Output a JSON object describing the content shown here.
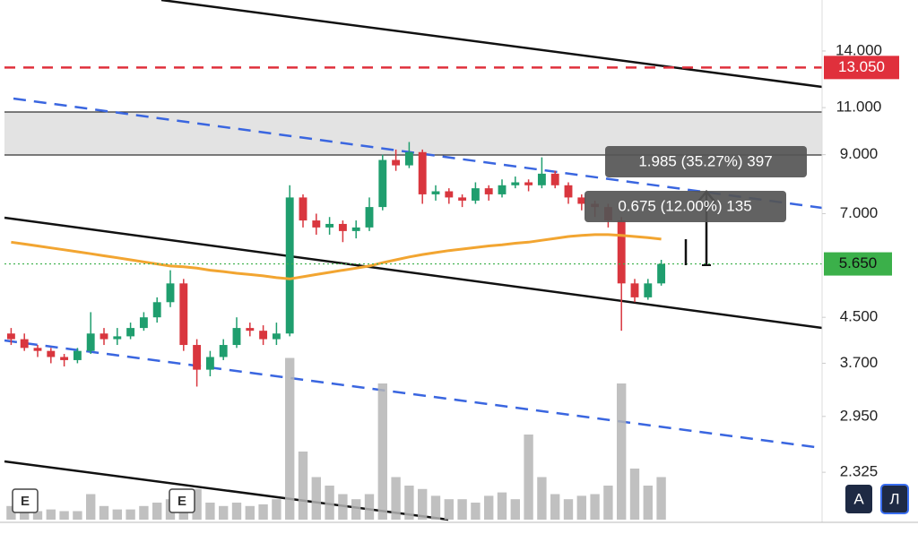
{
  "chart_data": {
    "type": "candlestick",
    "log_scale": true,
    "ylim": [
      1.9,
      17.4
    ],
    "yticks": [
      {
        "value": 14,
        "label": "14.000"
      },
      {
        "value": 11,
        "label": "11.000"
      },
      {
        "value": 9,
        "label": "9.000"
      },
      {
        "value": 7,
        "label": "7.000"
      },
      {
        "value": 4.5,
        "label": "4.500"
      },
      {
        "value": 3.7,
        "label": "3.700"
      },
      {
        "value": 2.95,
        "label": "2.950"
      },
      {
        "value": 2.325,
        "label": "2.325"
      }
    ],
    "up_color": "#1f9e6e",
    "down_color": "#d9363e",
    "volume_color": "#b5b5b5",
    "ma_color": "#f2a531",
    "open": [
      4.2,
      4.1,
      3.95,
      3.9,
      3.8,
      3.75,
      3.9,
      4.2,
      4.1,
      4.15,
      4.3,
      4.5,
      4.8,
      5.2,
      4.0,
      3.6,
      3.8,
      4.0,
      4.3,
      4.25,
      4.1,
      4.2,
      7.5,
      6.8,
      6.6,
      6.7,
      6.5,
      6.6,
      7.2,
      8.8,
      8.6,
      9.1,
      7.6,
      7.7,
      7.5,
      7.4,
      7.8,
      7.6,
      7.9,
      8.0,
      7.9,
      8.3,
      7.9,
      7.5,
      7.3,
      7.2,
      6.8,
      5.2,
      4.9,
      5.2
    ],
    "high": [
      4.3,
      4.2,
      4.0,
      3.95,
      3.85,
      3.95,
      4.6,
      4.3,
      4.3,
      4.4,
      4.6,
      4.9,
      5.5,
      5.3,
      4.1,
      3.9,
      4.1,
      4.5,
      4.4,
      4.35,
      4.4,
      7.9,
      7.6,
      7.0,
      6.9,
      6.8,
      6.8,
      7.5,
      9.0,
      9.2,
      9.5,
      9.2,
      7.9,
      7.8,
      7.6,
      8.0,
      7.9,
      8.1,
      8.2,
      8.1,
      8.9,
      8.4,
      8.0,
      7.6,
      7.4,
      7.3,
      6.9,
      5.3,
      5.3,
      5.75
    ],
    "low": [
      4.0,
      3.9,
      3.8,
      3.7,
      3.65,
      3.7,
      3.85,
      4.0,
      4.0,
      4.1,
      4.25,
      4.4,
      4.7,
      3.9,
      3.35,
      3.5,
      3.75,
      3.95,
      4.15,
      4.0,
      4.0,
      4.15,
      6.6,
      6.4,
      6.4,
      6.2,
      6.3,
      6.5,
      7.1,
      8.4,
      8.5,
      7.3,
      7.4,
      7.3,
      7.2,
      7.3,
      7.4,
      7.5,
      7.8,
      7.7,
      7.8,
      7.8,
      7.3,
      7.1,
      6.9,
      6.6,
      4.25,
      4.8,
      4.85,
      5.15
    ],
    "close": [
      4.1,
      3.95,
      3.9,
      3.8,
      3.75,
      3.9,
      4.2,
      4.1,
      4.15,
      4.3,
      4.5,
      4.8,
      5.2,
      4.0,
      3.6,
      3.8,
      4.0,
      4.3,
      4.25,
      4.1,
      4.2,
      7.5,
      6.8,
      6.6,
      6.7,
      6.5,
      6.6,
      7.2,
      8.8,
      8.6,
      9.1,
      7.6,
      7.7,
      7.5,
      7.4,
      7.8,
      7.6,
      7.9,
      8.0,
      7.9,
      8.3,
      7.9,
      7.5,
      7.3,
      7.2,
      6.8,
      5.2,
      4.9,
      5.2,
      5.65
    ],
    "ma": [
      6.2,
      6.15,
      6.1,
      6.05,
      6.0,
      5.95,
      5.9,
      5.85,
      5.8,
      5.75,
      5.7,
      5.65,
      5.6,
      5.58,
      5.55,
      5.5,
      5.47,
      5.43,
      5.4,
      5.37,
      5.33,
      5.3,
      5.35,
      5.4,
      5.45,
      5.5,
      5.55,
      5.6,
      5.68,
      5.75,
      5.82,
      5.88,
      5.93,
      5.98,
      6.02,
      6.06,
      6.1,
      6.13,
      6.17,
      6.2,
      6.25,
      6.3,
      6.35,
      6.38,
      6.4,
      6.4,
      6.38,
      6.35,
      6.32,
      6.28
    ],
    "volume": [
      8,
      6,
      5,
      6,
      5,
      5,
      15,
      8,
      6,
      6,
      8,
      10,
      12,
      14,
      18,
      10,
      8,
      10,
      8,
      9,
      12,
      95,
      40,
      25,
      20,
      15,
      12,
      15,
      80,
      25,
      20,
      18,
      14,
      12,
      12,
      10,
      14,
      16,
      12,
      50,
      25,
      15,
      12,
      14,
      15,
      20,
      80,
      30,
      20,
      25
    ],
    "vlim": [
      0,
      100
    ],
    "price_line": {
      "value": 13.05,
      "label": "13.050",
      "color": "#e0303c"
    },
    "last_price": {
      "value": 5.65,
      "label": "5.650",
      "color": "#3bb04a"
    },
    "annotations": [
      "1.985 (35.27%) 397",
      "0.675 (12.00%) 135"
    ],
    "event_markers": [
      "E",
      "E"
    ]
  },
  "buttons": [
    "A",
    "Л"
  ]
}
